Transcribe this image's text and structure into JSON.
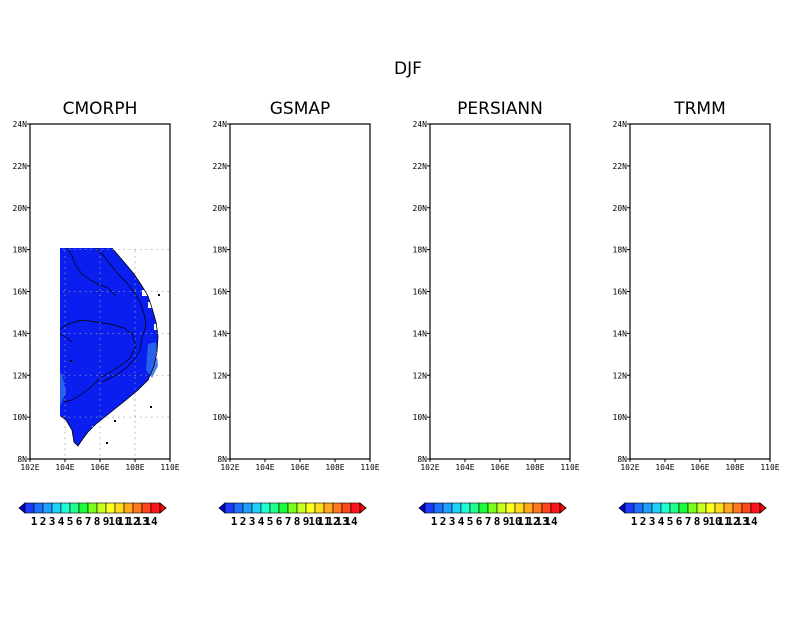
{
  "figure": {
    "title": "DJF"
  },
  "panels": [
    {
      "title": "CMORPH"
    },
    {
      "title": "GSMAP"
    },
    {
      "title": "PERSIANN"
    },
    {
      "title": "TRMM"
    }
  ],
  "axes": {
    "x_ticks": [
      "102E",
      "104E",
      "106E",
      "108E",
      "110E"
    ],
    "y_ticks": [
      "24N",
      "22N",
      "20N",
      "18N",
      "16N",
      "14N",
      "12N",
      "10N",
      "8N"
    ],
    "lon_range": [
      102,
      110
    ],
    "lat_range": [
      8,
      24
    ],
    "gridlines": "dotted"
  },
  "colorbar": {
    "labels": [
      "1",
      "2",
      "3",
      "4",
      "5",
      "6",
      "7",
      "8",
      "9",
      "10",
      "11",
      "12",
      "13",
      "14"
    ],
    "colors": [
      "#1e3cff",
      "#1e6eff",
      "#1ea0ff",
      "#1ed2ff",
      "#1effd2",
      "#1eff8c",
      "#1eff3c",
      "#78ff1e",
      "#c8ff1e",
      "#ffff1e",
      "#ffdc1e",
      "#ffaa1e",
      "#ff781e",
      "#ff461e",
      "#ff141e"
    ],
    "under_color": "#0000cd",
    "over_color": "#ff0000"
  },
  "colors": {
    "base_field": "#0a1ef0",
    "light_patch": "#2d6eeb",
    "sea": "#ffffff"
  }
}
